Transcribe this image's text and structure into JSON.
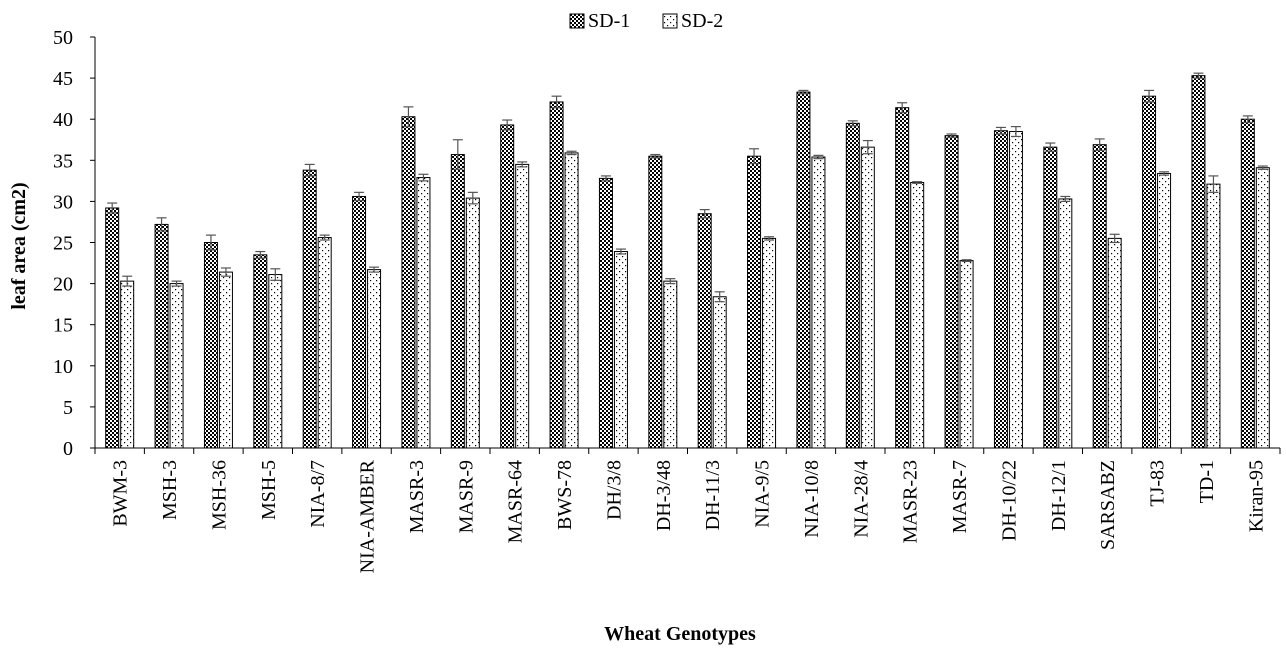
{
  "chart_data": {
    "type": "bar",
    "title": "",
    "xlabel": "Wheat Genotypes",
    "ylabel": "leaf area (cm2)",
    "ylim": [
      0,
      50
    ],
    "yticks": [
      0,
      5,
      10,
      15,
      20,
      25,
      30,
      35,
      40,
      45,
      50
    ],
    "grid": false,
    "legend_position": "top-center",
    "categories": [
      "BWM-3",
      "MSH-3",
      "MSH-36",
      "MSH-5",
      "NIA-8/7",
      "NIA-AMBER",
      "MASR-3",
      "MASR-9",
      "MASR-64",
      "BWS-78",
      "DH/3/8",
      "DH-3/48",
      "DH-11/3",
      "NIA-9/5",
      "NIA-10/8",
      "NIA-28/4",
      "MASR-23",
      "MASR-7",
      "DH-10/22",
      "DH-12/1",
      "SARSABZ",
      "TJ-83",
      "TD-1",
      "Kiran-95"
    ],
    "series": [
      {
        "name": "SD-1",
        "pattern": "dense-checker",
        "values": [
          29.2,
          27.2,
          25.0,
          23.5,
          33.8,
          30.6,
          40.3,
          35.7,
          39.3,
          42.1,
          32.8,
          35.5,
          28.5,
          35.5,
          43.3,
          39.5,
          41.4,
          38.0,
          38.6,
          36.6,
          36.9,
          42.8,
          45.3,
          40.0
        ],
        "errors": [
          0.6,
          0.8,
          0.9,
          0.4,
          0.7,
          0.5,
          1.2,
          1.8,
          0.6,
          0.7,
          0.3,
          0.2,
          0.5,
          0.9,
          0.2,
          0.3,
          0.6,
          0.2,
          0.4,
          0.5,
          0.7,
          0.7,
          0.3,
          0.4
        ]
      },
      {
        "name": "SD-2",
        "pattern": "sparse-dots",
        "values": [
          20.3,
          20.0,
          21.4,
          21.1,
          25.6,
          21.7,
          32.9,
          30.4,
          34.5,
          35.9,
          23.9,
          20.3,
          18.4,
          25.5,
          35.4,
          36.6,
          32.3,
          22.8,
          38.5,
          30.3,
          25.5,
          33.4,
          32.1,
          34.1
        ],
        "errors": [
          0.6,
          0.3,
          0.5,
          0.7,
          0.3,
          0.3,
          0.4,
          0.7,
          0.3,
          0.2,
          0.3,
          0.3,
          0.6,
          0.2,
          0.2,
          0.8,
          0.1,
          0.1,
          0.6,
          0.3,
          0.5,
          0.2,
          1.0,
          0.2
        ]
      }
    ]
  }
}
